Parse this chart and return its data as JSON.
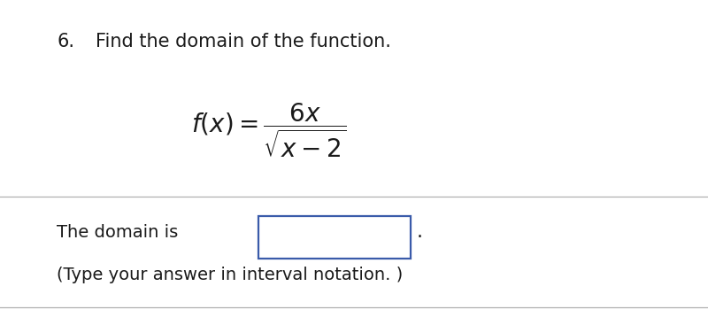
{
  "question_number": "6.",
  "question_text": "  Find the domain of the function.",
  "formula_text": "$\\dfrac{6x}{\\sqrt{x-2}}$",
  "fx_prefix": "$f(x) = $",
  "domain_label": "The domain is",
  "instruction_text": "(Type your answer in interval notation. )",
  "bg_color": "#ffffff",
  "text_color": "#1a1a1a",
  "box_edge_color": "#3a5baa",
  "sep_color": "#b0b0b0",
  "font_size_title": 15,
  "font_size_formula": 18,
  "font_size_body": 14
}
